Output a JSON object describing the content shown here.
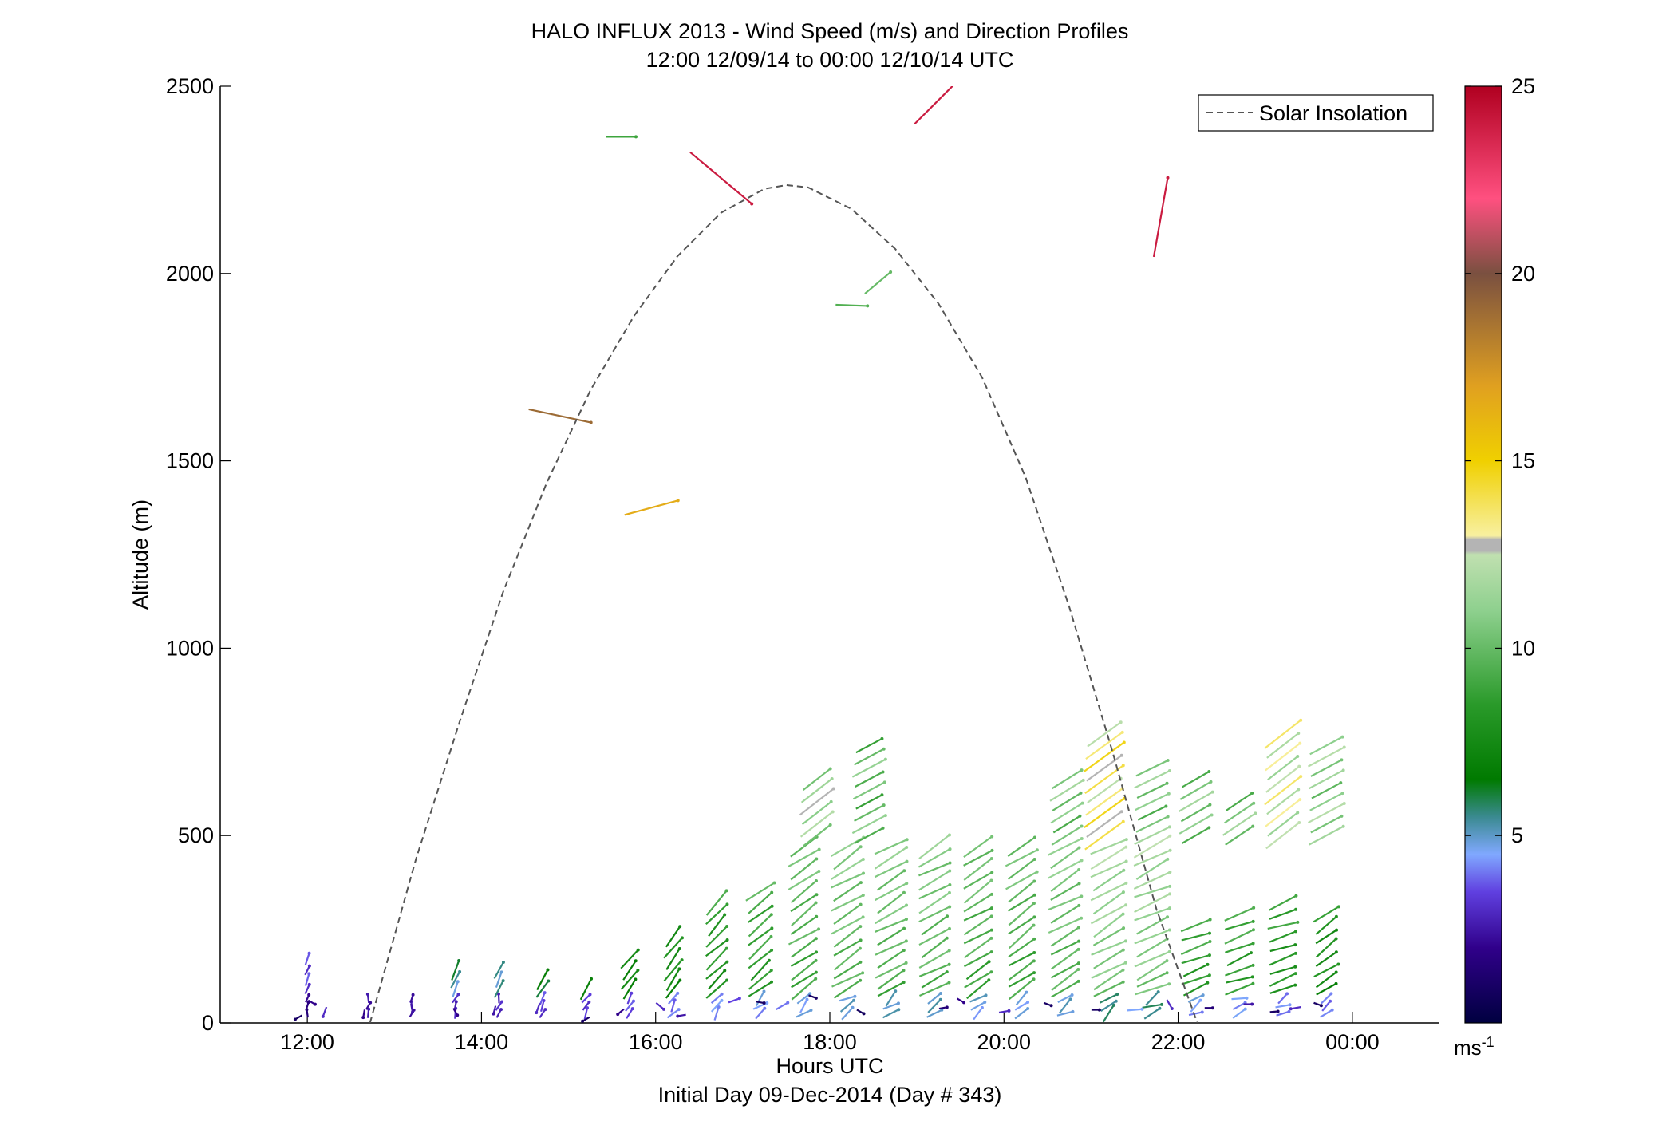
{
  "chart_data": {
    "type": "scatter",
    "title": "HALO INFLUX 2013 - Wind Speed (m/s) and Direction Profiles",
    "subtitle": "12:00 12/09/14 to 00:00 12/10/14  UTC",
    "xlabel": "Hours UTC",
    "xlabel2": "Initial Day 09-Dec-2014 (Day # 343)",
    "ylabel": "Altitude (m)",
    "xlim": [
      11,
      25
    ],
    "ylim": [
      0,
      2500
    ],
    "xticks": [
      {
        "value": 12,
        "label": "12:00"
      },
      {
        "value": 14,
        "label": "14:00"
      },
      {
        "value": 16,
        "label": "16:00"
      },
      {
        "value": 18,
        "label": "18:00"
      },
      {
        "value": 20,
        "label": "20:00"
      },
      {
        "value": 22,
        "label": "22:00"
      },
      {
        "value": 24,
        "label": "00:00"
      }
    ],
    "yticks": [
      {
        "value": 0,
        "label": "0"
      },
      {
        "value": 500,
        "label": "500"
      },
      {
        "value": 1000,
        "label": "1000"
      },
      {
        "value": 1500,
        "label": "1500"
      },
      {
        "value": 2000,
        "label": "2000"
      },
      {
        "value": 2500,
        "label": "2500"
      }
    ],
    "legend": {
      "label": "Solar Insolation",
      "position": "top-right",
      "color": "#555555"
    },
    "colorbar": {
      "min": 0,
      "max": 25,
      "ticks": [
        {
          "value": 5,
          "label": "5"
        },
        {
          "value": 10,
          "label": "10"
        },
        {
          "value": 15,
          "label": "15"
        },
        {
          "value": 20,
          "label": "20"
        },
        {
          "value": 25,
          "label": "25"
        }
      ],
      "unit_label": "ms",
      "unit_exp": "-1",
      "stops": [
        {
          "v": 0,
          "c": "#000040"
        },
        {
          "v": 2,
          "c": "#30008a"
        },
        {
          "v": 3.5,
          "c": "#6040e0"
        },
        {
          "v": 4.5,
          "c": "#80a8ff"
        },
        {
          "v": 5.5,
          "c": "#3a8a90"
        },
        {
          "v": 6.5,
          "c": "#007a00"
        },
        {
          "v": 8.5,
          "c": "#2a9a2a"
        },
        {
          "v": 11,
          "c": "#8ed08e"
        },
        {
          "v": 12.5,
          "c": "#c0e0b0"
        },
        {
          "v": 12.6,
          "c": "#b4b4b4"
        },
        {
          "v": 12.9,
          "c": "#b4b4b4"
        },
        {
          "v": 13,
          "c": "#f8f0a0"
        },
        {
          "v": 15,
          "c": "#f0d000"
        },
        {
          "v": 17,
          "c": "#e0a020"
        },
        {
          "v": 20,
          "c": "#7a5040"
        },
        {
          "v": 22,
          "c": "#ff5080"
        },
        {
          "v": 25,
          "c": "#b00020"
        }
      ]
    },
    "solar_insolation": {
      "x": [
        12.72,
        13.25,
        13.75,
        14.25,
        14.75,
        15.25,
        15.75,
        16.25,
        16.75,
        17.25,
        17.5,
        17.75,
        18.25,
        18.75,
        19.25,
        19.75,
        20.25,
        20.75,
        21.25,
        21.75,
        22.22
      ],
      "y": [
        0,
        439,
        804,
        1151,
        1442,
        1688,
        1886,
        2046,
        2162,
        2226,
        2236,
        2230,
        2172,
        2066,
        1919,
        1722,
        1455,
        1110,
        721,
        304,
        0
      ]
    },
    "profile_heights_low": [
      25,
      45,
      65,
      90,
      115,
      140,
      170,
      200,
      230,
      260,
      290,
      320,
      350,
      380,
      410,
      440,
      470
    ],
    "profile_heights_high": [
      500,
      530,
      560,
      590,
      620,
      650,
      680,
      710,
      740,
      770
    ],
    "profiles": [
      {
        "t": 12.0,
        "top": 190,
        "s": 3,
        "d": 200
      },
      {
        "t": 12.7,
        "top": 80,
        "s": 4.5,
        "d": 195
      },
      {
        "t": 13.2,
        "top": 80,
        "s": 4.5,
        "d": 200
      },
      {
        "t": 13.7,
        "top": 140,
        "s": 5,
        "d": 200
      },
      {
        "t": 14.2,
        "top": 140,
        "s": 5,
        "d": 205
      },
      {
        "t": 14.7,
        "top": 120,
        "s": 6,
        "d": 210
      },
      {
        "t": 15.2,
        "top": 100,
        "s": 6,
        "d": 215
      },
      {
        "t": 15.7,
        "top": 170,
        "s": 6.5,
        "d": 215
      },
      {
        "t": 16.2,
        "top": 240,
        "s": 7,
        "d": 218
      },
      {
        "t": 16.7,
        "top": 320,
        "s": 7.5,
        "d": 225
      },
      {
        "t": 17.2,
        "top": 350,
        "s": 8,
        "d": 230
      },
      {
        "t": 17.7,
        "top": 470,
        "s": 8.5,
        "d": 235
      },
      {
        "t": 18.2,
        "top": 470,
        "s": 9,
        "d": 238
      },
      {
        "t": 18.7,
        "top": 470,
        "s": 9,
        "d": 240
      },
      {
        "t": 19.2,
        "top": 470,
        "s": 9,
        "d": 240
      },
      {
        "t": 19.7,
        "top": 470,
        "s": 8.5,
        "d": 238
      },
      {
        "t": 20.2,
        "top": 470,
        "s": 8.5,
        "d": 235
      },
      {
        "t": 20.7,
        "top": 470,
        "s": 9,
        "d": 240
      },
      {
        "t": 21.2,
        "top": 470,
        "s": 10,
        "d": 240
      },
      {
        "t": 21.7,
        "top": 470,
        "s": 10,
        "d": 245
      },
      {
        "t": 22.2,
        "top": 260,
        "s": 8,
        "d": 248
      },
      {
        "t": 22.7,
        "top": 290,
        "s": 8,
        "d": 250
      },
      {
        "t": 23.2,
        "top": 320,
        "s": 7.5,
        "d": 250
      },
      {
        "t": 23.7,
        "top": 290,
        "s": 7,
        "d": 235
      }
    ],
    "upper_profiles": [
      {
        "t": 17.85,
        "top": 650,
        "s": 11.5
      },
      {
        "t": 18.45,
        "top": 740,
        "s": 10
      },
      {
        "t": 20.72,
        "top": 650,
        "s": 10.5
      },
      {
        "t": 21.15,
        "top": 770,
        "s": 13.5
      },
      {
        "t": 21.7,
        "top": 680,
        "s": 10.5
      },
      {
        "t": 22.2,
        "top": 650,
        "s": 10.5
      },
      {
        "t": 22.7,
        "top": 590,
        "s": 10.5
      },
      {
        "t": 23.2,
        "top": 770,
        "s": 12.5
      },
      {
        "t": 23.7,
        "top": 740,
        "s": 11
      }
    ],
    "surface_points": [
      {
        "t": 11.9,
        "h": 15,
        "s": 1,
        "d": 60
      },
      {
        "t": 12.05,
        "h": 55,
        "s": 2,
        "d": 300
      },
      {
        "t": 12.2,
        "h": 30,
        "s": 3,
        "d": 20
      },
      {
        "t": 12.65,
        "h": 25,
        "s": 2,
        "d": 10
      },
      {
        "t": 13.2,
        "h": 40,
        "s": 2.5,
        "d": 350
      },
      {
        "t": 13.7,
        "h": 30,
        "s": 2,
        "d": 330
      },
      {
        "t": 14.15,
        "h": 35,
        "s": 2.5,
        "d": 15
      },
      {
        "t": 14.65,
        "h": 40,
        "s": 3,
        "d": 20
      },
      {
        "t": 15.2,
        "h": 10,
        "s": 1,
        "d": 60
      },
      {
        "t": 15.6,
        "h": 30,
        "s": 2,
        "d": 50
      },
      {
        "t": 16.05,
        "h": 45,
        "s": 3,
        "d": 310
      },
      {
        "t": 16.3,
        "h": 20,
        "s": 2.5,
        "d": 80
      },
      {
        "t": 16.9,
        "h": 60,
        "s": 3.5,
        "d": 250
      },
      {
        "t": 17.2,
        "h": 55,
        "s": 1,
        "d": 280
      },
      {
        "t": 17.45,
        "h": 45,
        "s": 4,
        "d": 240
      },
      {
        "t": 17.8,
        "h": 70,
        "s": 1,
        "d": 290
      },
      {
        "t": 18.35,
        "h": 30,
        "s": 0.8,
        "d": 300
      },
      {
        "t": 19.3,
        "h": 40,
        "s": 1.5,
        "d": 260
      },
      {
        "t": 19.5,
        "h": 60,
        "s": 2,
        "d": 300
      },
      {
        "t": 20.0,
        "h": 30,
        "s": 3,
        "d": 260
      },
      {
        "t": 20.5,
        "h": 50,
        "s": 1,
        "d": 290
      },
      {
        "t": 21.05,
        "h": 35,
        "s": 1,
        "d": 270
      },
      {
        "t": 21.5,
        "h": 35,
        "s": 4.5,
        "d": 265
      },
      {
        "t": 21.9,
        "h": 50,
        "s": 3,
        "d": 330
      },
      {
        "t": 22.35,
        "h": 40,
        "s": 1.5,
        "d": 270
      },
      {
        "t": 22.8,
        "h": 50,
        "s": 2.5,
        "d": 270
      },
      {
        "t": 23.1,
        "h": 30,
        "s": 1,
        "d": 265
      },
      {
        "t": 23.35,
        "h": 40,
        "s": 3,
        "d": 80
      },
      {
        "t": 23.6,
        "h": 50,
        "s": 1,
        "d": 290
      }
    ],
    "isolated_vectors": [
      {
        "t": 15.6,
        "h": 2365,
        "s": 9,
        "d": 270
      },
      {
        "t": 16.75,
        "h": 2255,
        "s": 24,
        "d": 310
      },
      {
        "t": 19.3,
        "h": 2475,
        "s": 24,
        "d": 225
      },
      {
        "t": 21.8,
        "h": 2150,
        "s": 24,
        "d": 190
      },
      {
        "t": 18.25,
        "h": 1915,
        "s": 9.5,
        "d": 272
      },
      {
        "t": 18.55,
        "h": 1975,
        "s": 10,
        "d": 230
      },
      {
        "t": 14.9,
        "h": 1620,
        "s": 19,
        "d": 282
      },
      {
        "t": 15.95,
        "h": 1375,
        "s": 16.5,
        "d": 255
      }
    ]
  }
}
